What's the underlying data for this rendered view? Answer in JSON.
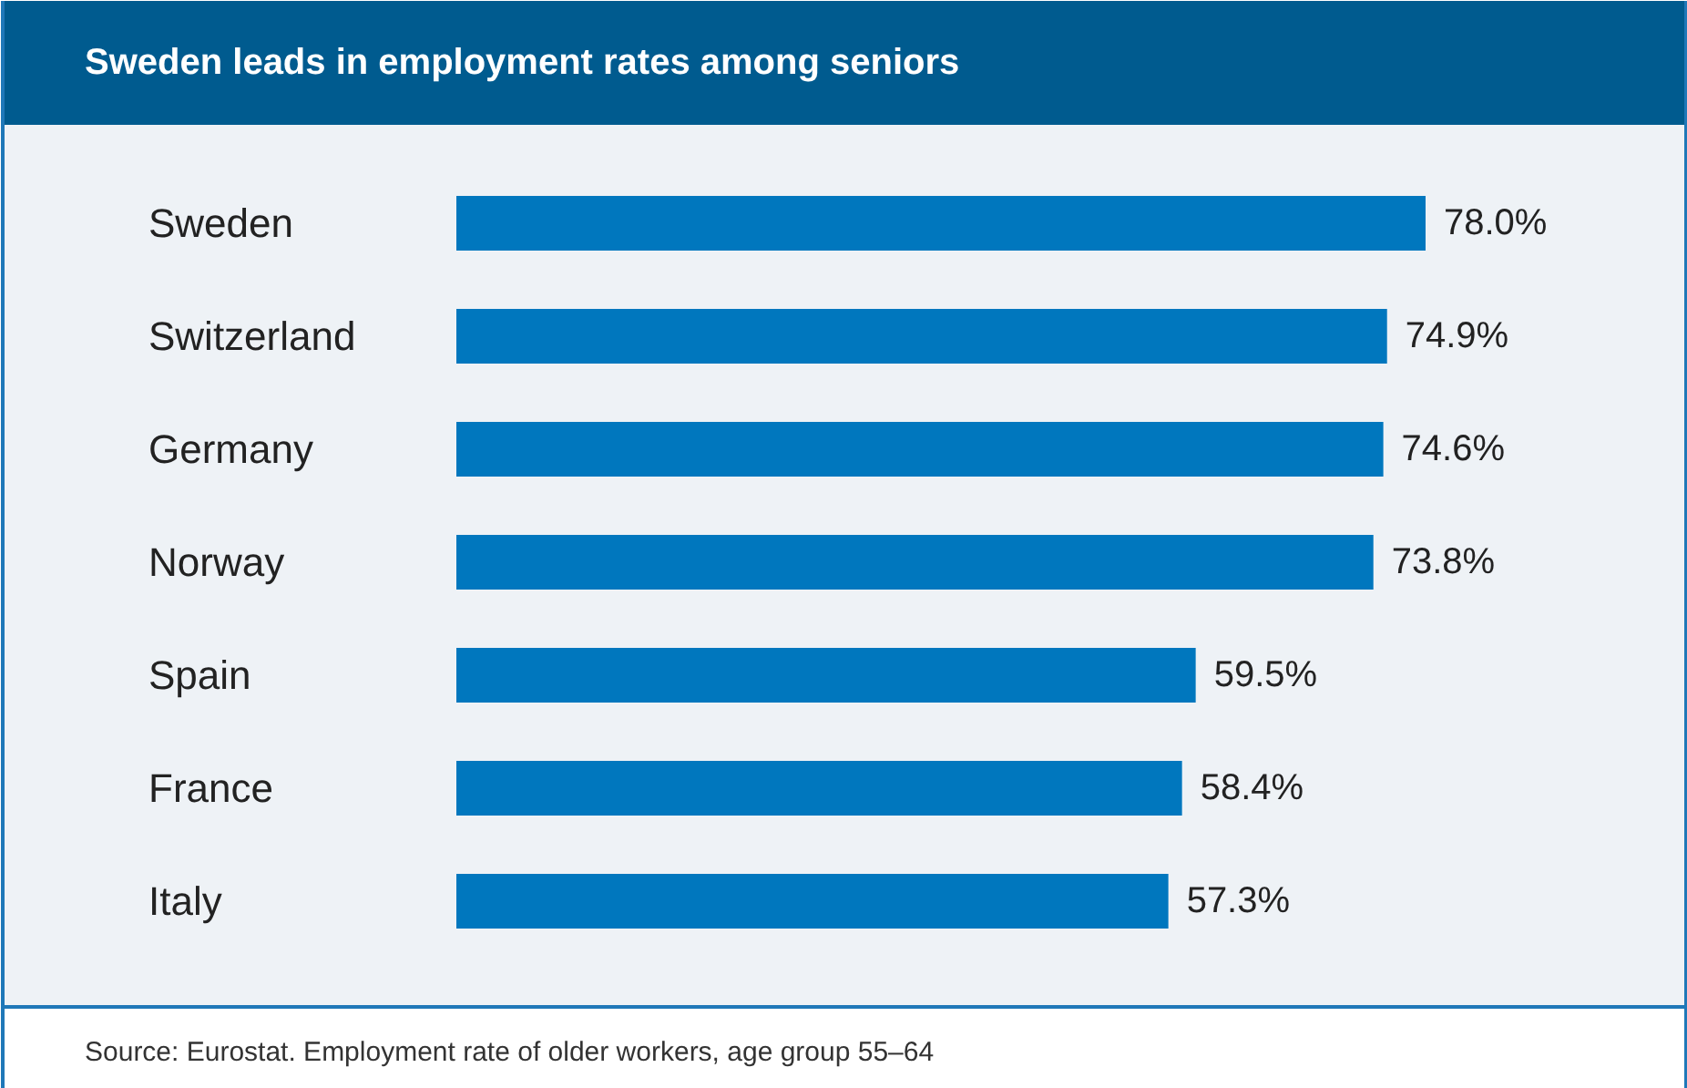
{
  "chart_data": {
    "type": "bar",
    "orientation": "horizontal",
    "title": "Sweden leads in employment rates among seniors",
    "categories": [
      "Sweden",
      "Switzerland",
      "Germany",
      "Norway",
      "Spain",
      "France",
      "Italy"
    ],
    "values": [
      78.0,
      74.9,
      74.6,
      73.8,
      59.5,
      58.4,
      57.3
    ],
    "value_labels": [
      "78.0%",
      "74.9%",
      "74.6%",
      "73.8%",
      "59.5%",
      "58.4%",
      "57.3%"
    ],
    "color": "#0077be",
    "annotations": [
      "Source: Eurostat. Employment rate of older workers, age group 55–64"
    ]
  }
}
